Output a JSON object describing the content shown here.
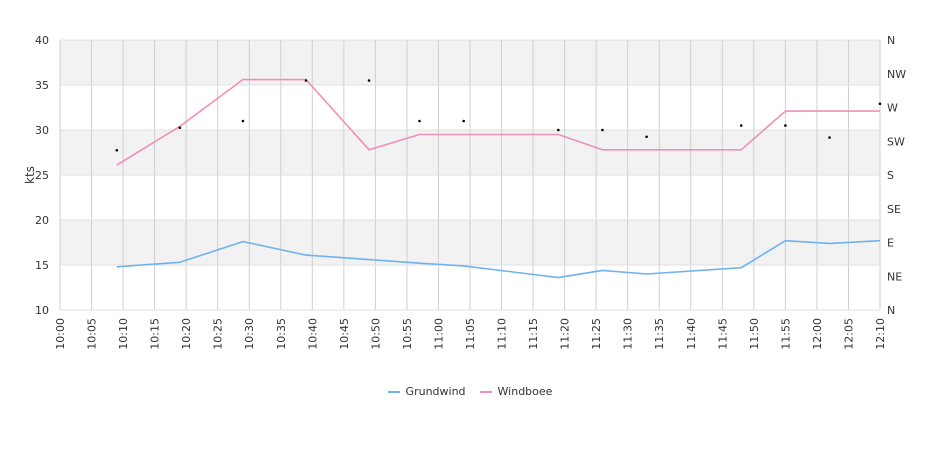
{
  "chart_data": {
    "type": "line",
    "ylabel": "kts",
    "ylim": [
      10,
      40
    ],
    "yticks": [
      10,
      15,
      20,
      25,
      30,
      35,
      40
    ],
    "x_ticks": [
      "10:00",
      "10:05",
      "10:10",
      "10:15",
      "10:20",
      "10:25",
      "10:30",
      "10:35",
      "10:40",
      "10:45",
      "10:50",
      "10:55",
      "11:00",
      "11:05",
      "11:10",
      "11:15",
      "11:20",
      "11:25",
      "11:30",
      "11:35",
      "11:40",
      "11:45",
      "11:50",
      "11:55",
      "12:00",
      "12:05",
      "12:10"
    ],
    "xlim": [
      "10:00",
      "12:10"
    ],
    "right_axis": {
      "labels": [
        "N",
        "NE",
        "E",
        "SE",
        "S",
        "SW",
        "W",
        "NW",
        "N"
      ],
      "range_deg": [
        0,
        360
      ]
    },
    "grid": true,
    "legend_position": "bottom",
    "series": [
      {
        "name": "Grundwind",
        "color": "#6fb2ef",
        "points": [
          {
            "x": "10:09",
            "y": 14.8
          },
          {
            "x": "10:19",
            "y": 15.3
          },
          {
            "x": "10:29",
            "y": 17.6
          },
          {
            "x": "10:39",
            "y": 16.1
          },
          {
            "x": "10:49",
            "y": 15.6
          },
          {
            "x": "10:57",
            "y": 15.2
          },
          {
            "x": "11:04",
            "y": 14.9
          },
          {
            "x": "11:19",
            "y": 13.6
          },
          {
            "x": "11:26",
            "y": 14.4
          },
          {
            "x": "11:33",
            "y": 14.0
          },
          {
            "x": "11:48",
            "y": 14.7
          },
          {
            "x": "11:55",
            "y": 17.7
          },
          {
            "x": "12:02",
            "y": 17.4
          },
          {
            "x": "12:10",
            "y": 17.7
          }
        ]
      },
      {
        "name": "Windboee",
        "color": "#ef8fba",
        "points": [
          {
            "x": "10:09",
            "y": 26.1
          },
          {
            "x": "10:19",
            "y": 30.4
          },
          {
            "x": "10:29",
            "y": 35.6
          },
          {
            "x": "10:39",
            "y": 35.6
          },
          {
            "x": "10:49",
            "y": 27.8
          },
          {
            "x": "10:57",
            "y": 29.5
          },
          {
            "x": "11:04",
            "y": 29.5
          },
          {
            "x": "11:19",
            "y": 29.5
          },
          {
            "x": "11:26",
            "y": 27.8
          },
          {
            "x": "11:33",
            "y": 27.8
          },
          {
            "x": "11:48",
            "y": 27.8
          },
          {
            "x": "11:55",
            "y": 32.1
          },
          {
            "x": "12:02",
            "y": 32.1
          },
          {
            "x": "12:10",
            "y": 32.1
          }
        ]
      }
    ],
    "direction_points": [
      {
        "x": "10:09",
        "deg": 213
      },
      {
        "x": "10:19",
        "deg": 243
      },
      {
        "x": "10:29",
        "deg": 252
      },
      {
        "x": "10:39",
        "deg": 306
      },
      {
        "x": "10:49",
        "deg": 306
      },
      {
        "x": "10:57",
        "deg": 252
      },
      {
        "x": "11:04",
        "deg": 252
      },
      {
        "x": "11:19",
        "deg": 240
      },
      {
        "x": "11:26",
        "deg": 240
      },
      {
        "x": "11:33",
        "deg": 231
      },
      {
        "x": "11:48",
        "deg": 246
      },
      {
        "x": "11:55",
        "deg": 246
      },
      {
        "x": "12:02",
        "deg": 230
      },
      {
        "x": "12:10",
        "deg": 275
      }
    ],
    "direction_marker_color": "#000000"
  }
}
